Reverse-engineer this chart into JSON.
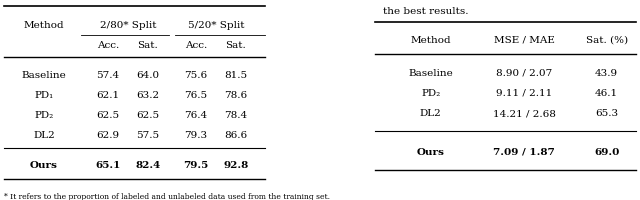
{
  "table1": {
    "headers": [
      "Method",
      "2/80* Split",
      "5/20* Split"
    ],
    "subheaders": [
      "Acc.",
      "Sat.",
      "Acc.",
      "Sat."
    ],
    "rows": [
      [
        "Baseline",
        "57.4",
        "64.0",
        "75.6",
        "81.5"
      ],
      [
        "PD₁",
        "62.1",
        "63.2",
        "76.5",
        "78.6"
      ],
      [
        "PD₂",
        "62.5",
        "62.5",
        "76.4",
        "78.4"
      ],
      [
        "DL2",
        "62.9",
        "57.5",
        "79.3",
        "86.6"
      ]
    ],
    "last_row": [
      "Ours",
      "65.1",
      "82.4",
      "79.5",
      "92.8"
    ],
    "footnote": "* It refers to the proportion of labeled and unlabeled data used from the training set."
  },
  "table2": {
    "caption": "the best results.",
    "headers": [
      "Method",
      "MSE / MAE",
      "Sat. (%)"
    ],
    "rows": [
      [
        "Baseline",
        "8.90 / 2.07",
        "43.9"
      ],
      [
        "PD₂",
        "9.11 / 2.11",
        "46.1"
      ],
      [
        "DL2",
        "14.21 / 2.68",
        "65.3"
      ]
    ],
    "last_row": [
      "Ours",
      "7.09 / 1.87",
      "69.0"
    ]
  },
  "fontsize": 7.5,
  "fontfamily": "serif"
}
